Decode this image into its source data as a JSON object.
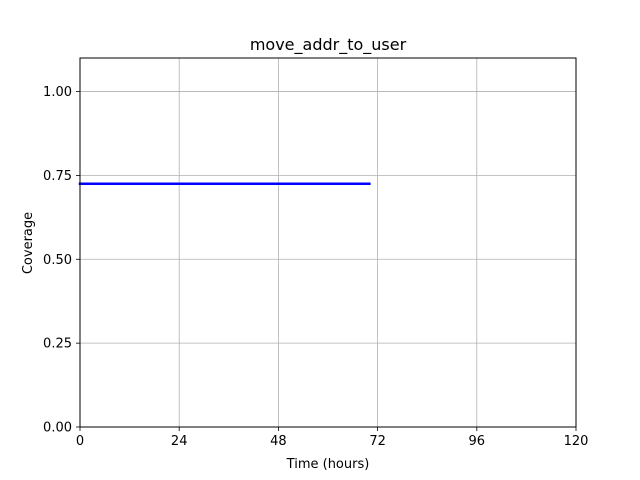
{
  "chart_data": {
    "type": "line",
    "title": "move_addr_to_user",
    "xlabel": "Time (hours)",
    "ylabel": "Coverage",
    "xlim": [
      0,
      120
    ],
    "ylim": [
      0,
      1.1
    ],
    "xticks": [
      0,
      24,
      48,
      72,
      96,
      120
    ],
    "xtick_labels": [
      "0",
      "24",
      "48",
      "72",
      "96",
      "120"
    ],
    "yticks": [
      0,
      0.25,
      0.5,
      0.75,
      1.0
    ],
    "ytick_labels": [
      "0.00",
      "0.25",
      "0.50",
      "0.75",
      "1.00"
    ],
    "grid": true,
    "series": [
      {
        "color": "#0000ff",
        "x": [
          0,
          70
        ],
        "y": [
          0.725,
          0.725
        ]
      }
    ]
  }
}
